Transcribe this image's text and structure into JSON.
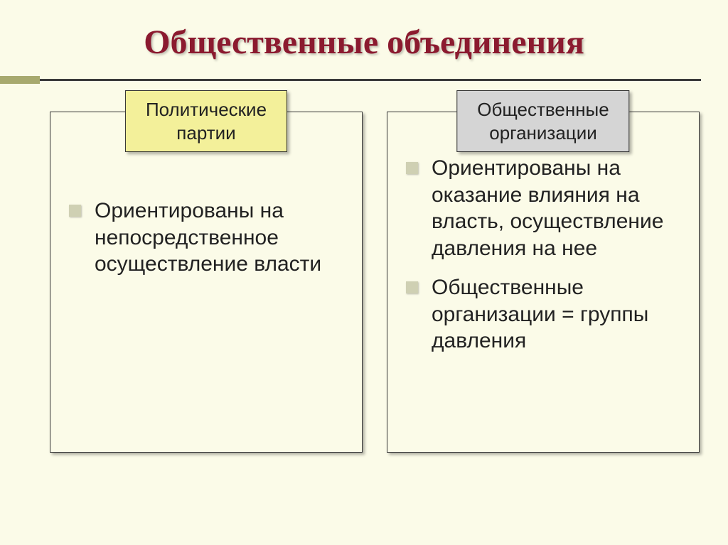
{
  "title": "Общественные объединения",
  "columns": [
    {
      "label": "Политические\nпартии",
      "label_color": "yellow",
      "items": [
        "Ориентированы на непосредственное осуществление власти"
      ]
    },
    {
      "label": "Общественные\nорганизации",
      "label_color": "grey",
      "items": [
        "Ориентированы на оказание влияния на власть, осуществление давления на нее",
        "Общественные организации = группы давления"
      ]
    }
  ],
  "style": {
    "background_color": "#fbfbe8",
    "title_color": "#8b1a2f",
    "title_fontsize": 48,
    "accent_block_color": "#a7a96e",
    "bullet_color": "#cfd0b3",
    "body_fontsize": 30,
    "label_fontsize": 26,
    "shadow": "3px 3px 4px rgba(0,0,0,0.3)"
  }
}
